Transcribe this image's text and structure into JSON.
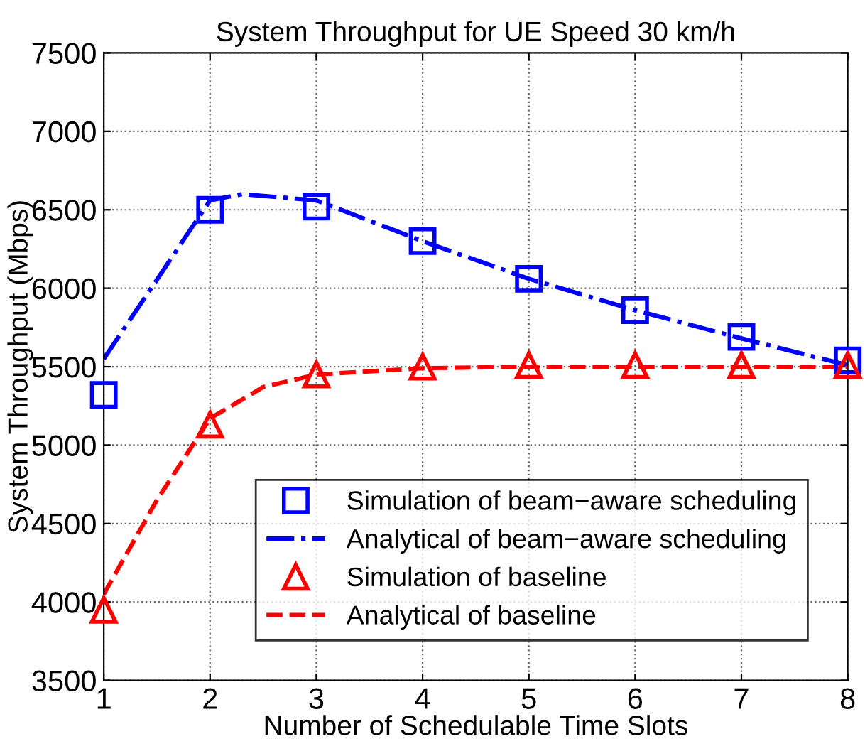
{
  "chart_data": {
    "type": "line",
    "title": "System Throughput for UE Speed 30 km/h",
    "xlabel": "Number of Schedulable Time Slots",
    "ylabel": "System Throughput (Mbps)",
    "xlim": [
      1,
      8
    ],
    "xticks": [
      1,
      2,
      3,
      4,
      5,
      6,
      7,
      8
    ],
    "ylim": [
      3500,
      7500
    ],
    "yticks": [
      3500,
      4000,
      4500,
      5000,
      5500,
      6000,
      6500,
      7000,
      7500
    ],
    "grid": true,
    "legend": "bottom right",
    "series": [
      {
        "name": "Simulation of beam−aware scheduling",
        "type": "scatter",
        "color": "#0000ff",
        "marker": "square",
        "x": [
          1,
          2,
          3,
          4,
          5,
          6,
          7,
          8
        ],
        "values": [
          5320,
          6500,
          6520,
          6300,
          6060,
          5860,
          5690,
          5540
        ]
      },
      {
        "name": "Analytical of beam−aware scheduling",
        "color": "#0000ff",
        "line_style": "dashdot",
        "x": [
          1,
          2,
          2.3,
          3,
          4,
          5,
          6,
          7,
          8
        ],
        "values": [
          5550,
          6560,
          6600,
          6560,
          6300,
          6060,
          5860,
          5680,
          5510
        ]
      },
      {
        "name": "Simulation of baseline",
        "type": "scatter",
        "color": "#ff0000",
        "marker": "triangle",
        "x": [
          1,
          2,
          3,
          4,
          5,
          6,
          7,
          8
        ],
        "values": [
          3950,
          5130,
          5450,
          5500,
          5510,
          5510,
          5510,
          5510
        ]
      },
      {
        "name": "Analytical of baseline",
        "color": "#ff0000",
        "line_style": "dashed",
        "x": [
          1,
          1.5,
          2,
          2.5,
          3,
          4,
          5,
          6,
          7,
          8
        ],
        "values": [
          4050,
          4650,
          5170,
          5370,
          5450,
          5490,
          5500,
          5500,
          5500,
          5500
        ]
      }
    ]
  }
}
